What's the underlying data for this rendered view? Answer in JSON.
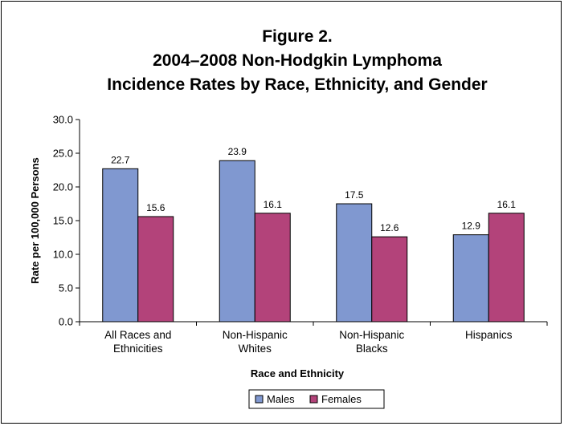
{
  "chart_data": {
    "type": "bar",
    "title": [
      "Figure 2.",
      "2004–2008 Non-Hodgkin Lymphoma",
      "Incidence Rates by Race, Ethnicity, and Gender"
    ],
    "xlabel": "Race and Ethnicity",
    "ylabel": "Rate per 100,000 Persons",
    "ylim": [
      0,
      30
    ],
    "yticks": [
      "0.0",
      "5.0",
      "10.0",
      "15.0",
      "20.0",
      "25.0",
      "30.0"
    ],
    "categories": [
      [
        "All Races and",
        "Ethnicities"
      ],
      [
        "Non-Hispanic",
        "Whites"
      ],
      [
        "Non-Hispanic",
        "Blacks"
      ],
      [
        "Hispanics"
      ]
    ],
    "series": [
      {
        "name": "Males",
        "color": "#8098d0",
        "values": [
          22.7,
          23.9,
          17.5,
          12.9
        ],
        "labels": [
          "22.7",
          "23.9",
          "17.5",
          "12.9"
        ]
      },
      {
        "name": "Females",
        "color": "#b3437a",
        "values": [
          15.6,
          16.1,
          12.6,
          16.1
        ],
        "labels": [
          "15.6",
          "16.1",
          "12.6",
          "16.1"
        ]
      }
    ],
    "grid": false,
    "legend": "bottom-center"
  }
}
